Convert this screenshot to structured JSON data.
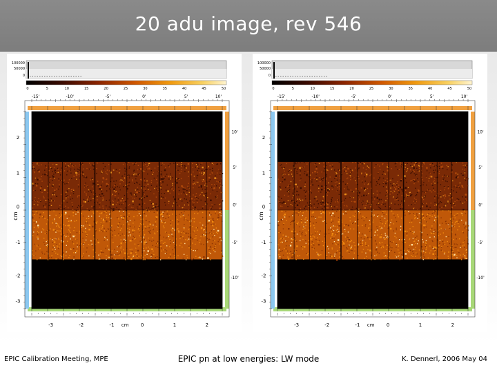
{
  "title": "20 adu image, rev 546",
  "footer": {
    "left": "EPIC Calibration Meeting, MPE",
    "center": "EPIC pn at low energies: LW mode",
    "right": "K. Dennerl, 2006 May 04"
  },
  "panels": [
    {
      "histogram_labels": [
        "100000",
        "50000",
        "0"
      ],
      "colorbar_ticks": [
        "0",
        "5",
        "10",
        "15",
        "20",
        "25",
        "30",
        "35",
        "40",
        "45",
        "50"
      ],
      "top_arcmin_ticks": [
        "-15'",
        "-10'",
        "-5'",
        "0'",
        "5'",
        "10'"
      ],
      "left_cm_ticks": [
        "2",
        "1",
        "0",
        "-1",
        "-2",
        "-3"
      ],
      "left_axis_unit": "cm",
      "right_arcmin_ticks": [
        "10'",
        "5'",
        "0'",
        "-5'",
        "-10'"
      ],
      "bottom_cm_ticks": [
        "-3",
        "-2",
        "-1",
        "cm",
        "0",
        "1",
        "2"
      ]
    },
    {
      "histogram_labels": [
        "100000",
        "50000",
        "0"
      ],
      "colorbar_ticks": [
        "0",
        "5",
        "10",
        "15",
        "20",
        "25",
        "30",
        "35",
        "40",
        "45",
        "50"
      ],
      "top_arcmin_ticks": [
        "-15'",
        "-10'",
        "-5'",
        "0'",
        "5'",
        "10'"
      ],
      "left_cm_ticks": [
        "2",
        "1",
        "0",
        "-1",
        "-2",
        "-3"
      ],
      "left_axis_unit": "cm",
      "right_arcmin_ticks": [
        "10'",
        "5'",
        "0'",
        "-5'",
        "-10'"
      ],
      "bottom_cm_ticks": [
        "-3",
        "-2",
        "-1",
        "cm",
        "0",
        "1",
        "2"
      ]
    }
  ]
}
